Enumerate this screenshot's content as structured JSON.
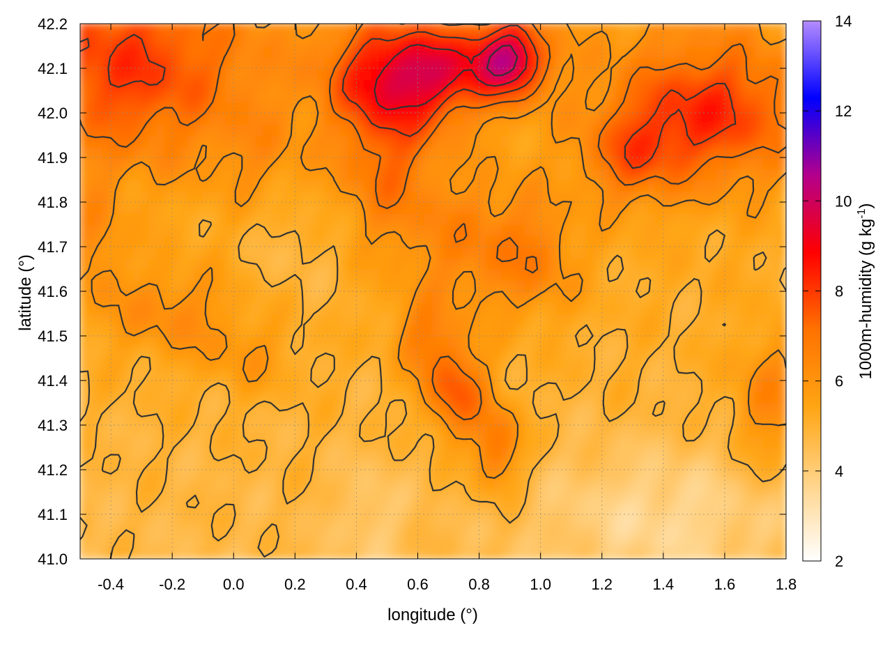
{
  "chart_data": {
    "type": "heatmap",
    "title": "",
    "xlabel": "longitude (°)",
    "ylabel": "latitude (°)",
    "xlim": [
      -0.5,
      1.8
    ],
    "ylim": [
      41.0,
      42.2
    ],
    "x_ticks": [
      -0.4,
      -0.2,
      0.0,
      0.2,
      0.4,
      0.6,
      0.8,
      1.0,
      1.2,
      1.4,
      1.6,
      1.8
    ],
    "x_tick_labels": [
      "-0.4",
      "-0.2",
      "0.0",
      "0.2",
      "0.4",
      "0.6",
      "0.8",
      "1.0",
      "1.2",
      "1.4",
      "1.6",
      "1.8"
    ],
    "y_ticks": [
      41.0,
      41.1,
      41.2,
      41.3,
      41.4,
      41.5,
      41.6,
      41.7,
      41.8,
      41.9,
      42.0,
      42.1,
      42.2
    ],
    "y_tick_labels": [
      "41.0",
      "41.1",
      "41.2",
      "41.3",
      "41.4",
      "41.5",
      "41.6",
      "41.7",
      "41.8",
      "41.9",
      "42.0",
      "42.1",
      "42.2"
    ],
    "grid": true,
    "colorbar": {
      "label": "1000m-humidity (g kg",
      "label_superscript": "-1",
      "label_suffix": ")",
      "range": [
        2,
        14
      ],
      "ticks": [
        2,
        4,
        6,
        8,
        10,
        12,
        14
      ],
      "tick_labels": [
        "2",
        "4",
        "6",
        "8",
        "10",
        "12",
        "14"
      ],
      "colors": [
        "#ffffff",
        "#ffd48a",
        "#ffa514",
        "#ff7200",
        "#ff0000",
        "#b4008c",
        "#0000ff",
        "#b48cff"
      ]
    },
    "contour_levels": [
      5,
      6,
      7,
      8,
      9,
      10
    ],
    "contour_color": "#333333"
  }
}
